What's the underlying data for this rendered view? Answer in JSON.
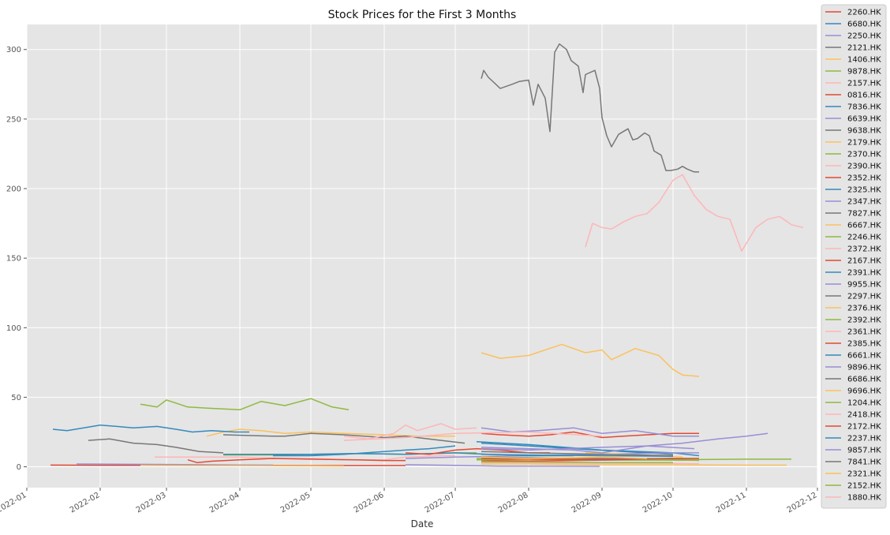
{
  "chart_data": {
    "type": "line",
    "title": "Stock Prices for the First 3 Months",
    "xlabel": "Date",
    "ylabel": "",
    "xlim": [
      "2022-01-01",
      "2022-12-01"
    ],
    "ylim": [
      -15,
      318
    ],
    "x_ticks": [
      "2022-01",
      "2022-02",
      "2022-03",
      "2022-04",
      "2022-05",
      "2022-06",
      "2022-07",
      "2022-08",
      "2022-09",
      "2022-10",
      "2022-11",
      "2022-12"
    ],
    "y_ticks": [
      0,
      50,
      100,
      150,
      200,
      250,
      300
    ],
    "grid": true,
    "legend_position": "right",
    "series": [
      {
        "name": "2260.HK",
        "color": "#E24A33",
        "x": [
          "2022-07-12",
          "2022-08-01",
          "2022-09-01",
          "2022-10-01",
          "2022-10-12"
        ],
        "y": [
          4.5,
          4.2,
          4.8,
          5.0,
          4.6
        ]
      },
      {
        "name": "6680.HK",
        "color": "#348ABD",
        "x": [
          "2022-07-12",
          "2022-08-01",
          "2022-08-20",
          "2022-09-10",
          "2022-10-01"
        ],
        "y": [
          17,
          15,
          13,
          11,
          9
        ]
      },
      {
        "name": "2250.HK",
        "color": "#988ED5",
        "x": [
          "2022-06-10",
          "2022-07-01",
          "2022-07-20",
          "2022-08-10",
          "2022-08-31"
        ],
        "y": [
          1.5,
          1.0,
          0.5,
          0.5,
          0.3
        ]
      },
      {
        "name": "2121.HK",
        "color": "#777777",
        "x": [
          "2022-07-12",
          "2022-07-13",
          "2022-07-15",
          "2022-07-20",
          "2022-07-25",
          "2022-07-28",
          "2022-08-01",
          "2022-08-03",
          "2022-08-05",
          "2022-08-08",
          "2022-08-10",
          "2022-08-12",
          "2022-08-14",
          "2022-08-17",
          "2022-08-19",
          "2022-08-22",
          "2022-08-24",
          "2022-08-25",
          "2022-08-29",
          "2022-08-31",
          "2022-09-01",
          "2022-09-03",
          "2022-09-05",
          "2022-09-08",
          "2022-09-10",
          "2022-09-12",
          "2022-09-14",
          "2022-09-16",
          "2022-09-19",
          "2022-09-21",
          "2022-09-23",
          "2022-09-26",
          "2022-09-28",
          "2022-09-30",
          "2022-10-03",
          "2022-10-05",
          "2022-10-07",
          "2022-10-10",
          "2022-10-12"
        ],
        "y": [
          279,
          285,
          280,
          272,
          275,
          277,
          278,
          260,
          275,
          265,
          241,
          298,
          304,
          300,
          292,
          288,
          269,
          282,
          285,
          272,
          251,
          238,
          230,
          239,
          241,
          243,
          235,
          236,
          240,
          238,
          227,
          224,
          213,
          213,
          214,
          216,
          214,
          212,
          212
        ]
      },
      {
        "name": "1406.HK",
        "color": "#FBC15E",
        "x": [
          "2022-07-12",
          "2022-07-20",
          "2022-08-01",
          "2022-08-15",
          "2022-08-25",
          "2022-09-01",
          "2022-09-05",
          "2022-09-15",
          "2022-09-25",
          "2022-10-01",
          "2022-10-05",
          "2022-10-12"
        ],
        "y": [
          82,
          78,
          80,
          88,
          82,
          84,
          77,
          85,
          80,
          70,
          66,
          65
        ]
      },
      {
        "name": "9878.HK",
        "color": "#8EBA42",
        "x": [
          "2022-07-10",
          "2022-08-01",
          "2022-09-01",
          "2022-10-01",
          "2022-10-12"
        ],
        "y": [
          6.0,
          5.5,
          5.0,
          4.8,
          4.6
        ]
      },
      {
        "name": "2157.HK",
        "color": "#FFB5B8",
        "x": [
          "2022-07-12",
          "2022-08-01",
          "2022-09-01",
          "2022-10-01",
          "2022-10-12"
        ],
        "y": [
          3.0,
          2.8,
          2.5,
          2.4,
          2.2
        ]
      },
      {
        "name": "0816.HK",
        "color": "#E24A33",
        "x": [
          "2022-01-11",
          "2022-02-01",
          "2022-03-01",
          "2022-04-01",
          "2022-05-01",
          "2022-06-01",
          "2022-06-10"
        ],
        "y": [
          1.2,
          1.1,
          1.0,
          1.0,
          0.9,
          0.9,
          0.9
        ]
      },
      {
        "name": "7836.HK",
        "color": "#348ABD",
        "x": [
          "2022-07-10",
          "2022-08-01",
          "2022-09-01",
          "2022-10-01",
          "2022-10-12"
        ],
        "y": [
          18,
          16,
          12,
          10,
          8
        ]
      },
      {
        "name": "6639.HK",
        "color": "#988ED5",
        "x": [
          "2022-06-10",
          "2022-07-01",
          "2022-08-01",
          "2022-09-01",
          "2022-10-01",
          "2022-10-12"
        ],
        "y": [
          6,
          7,
          8,
          9,
          10,
          10
        ]
      },
      {
        "name": "9638.HK",
        "color": "#777777",
        "x": [
          "2022-07-12",
          "2022-08-01",
          "2022-09-01",
          "2022-10-01",
          "2022-10-12"
        ],
        "y": [
          7,
          6.5,
          6,
          5.5,
          5
        ]
      },
      {
        "name": "2179.HK",
        "color": "#FBC15E",
        "x": [
          "2022-03-18",
          "2022-03-25",
          "2022-04-01",
          "2022-04-10",
          "2022-04-20",
          "2022-05-01",
          "2022-05-15",
          "2022-06-01",
          "2022-06-15",
          "2022-07-01"
        ],
        "y": [
          22,
          25,
          27,
          26,
          24,
          25,
          24,
          23,
          22,
          22
        ]
      },
      {
        "name": "2370.HK",
        "color": "#8EBA42",
        "x": [
          "2022-03-25",
          "2022-04-15",
          "2022-05-01",
          "2022-05-20",
          "2022-06-10",
          "2022-07-01",
          "2022-07-10"
        ],
        "y": [
          8.5,
          8.5,
          9.0,
          9.5,
          9.0,
          10,
          10
        ]
      },
      {
        "name": "2390.HK",
        "color": "#FFB5B8",
        "x": [
          "2022-02-24",
          "2022-03-15",
          "2022-04-01",
          "2022-04-20",
          "2022-05-01",
          "2022-05-15",
          "2022-06-01",
          "2022-06-10",
          "2022-06-25",
          "2022-07-01"
        ],
        "y": [
          7,
          7,
          7,
          6,
          6,
          5,
          5,
          7,
          8,
          8
        ]
      },
      {
        "name": "2352.HK",
        "color": "#E24A33",
        "x": [
          "2022-03-10",
          "2022-03-14",
          "2022-03-20",
          "2022-04-01",
          "2022-04-15",
          "2022-05-01",
          "2022-05-20",
          "2022-06-01",
          "2022-06-10"
        ],
        "y": [
          5,
          3,
          4,
          5,
          6,
          5.5,
          5,
          4.5,
          4.5
        ]
      },
      {
        "name": "2325.HK",
        "color": "#348ABD",
        "x": [
          "2022-03-25",
          "2022-04-15",
          "2022-05-01",
          "2022-05-20",
          "2022-06-10",
          "2022-07-01",
          "2022-07-15",
          "2022-08-01",
          "2022-08-20"
        ],
        "y": [
          9,
          9,
          9,
          9.5,
          9,
          10,
          9,
          8,
          8
        ]
      },
      {
        "name": "2347.HK",
        "color": "#988ED5",
        "x": [
          "2022-01-22",
          "2022-02-15",
          "2022-03-15",
          "2022-04-01",
          "2022-04-15"
        ],
        "y": [
          2,
          1.8,
          1.5,
          1.3,
          1.2
        ]
      },
      {
        "name": "7827.HK",
        "color": "#777777",
        "x": [
          "2022-03-25",
          "2022-04-15",
          "2022-04-20",
          "2022-05-01",
          "2022-05-15",
          "2022-06-01",
          "2022-06-10",
          "2022-06-25",
          "2022-07-05"
        ],
        "y": [
          23,
          22,
          22,
          24,
          23,
          21,
          22,
          19,
          17
        ]
      },
      {
        "name": "6667.HK",
        "color": "#FBC15E",
        "x": [
          "2022-08-25",
          "2022-09-10",
          "2022-09-25",
          "2022-10-05"
        ],
        "y": [
          10,
          9,
          8,
          7
        ]
      },
      {
        "name": "2246.HK",
        "color": "#8EBA42",
        "x": [
          "2022-07-10",
          "2022-08-01",
          "2022-08-15",
          "2022-09-01",
          "2022-09-15",
          "2022-10-01",
          "2022-10-12"
        ],
        "y": [
          5,
          6,
          6,
          5.5,
          5,
          5,
          5
        ]
      },
      {
        "name": "2372.HK",
        "color": "#FFB5B8",
        "x": [
          "2022-05-15",
          "2022-05-25",
          "2022-06-05",
          "2022-06-10",
          "2022-06-15",
          "2022-06-25",
          "2022-07-01",
          "2022-07-10"
        ],
        "y": [
          22,
          20,
          24,
          30,
          26,
          31,
          27,
          28
        ]
      },
      {
        "name": "2167.HK",
        "color": "#E24A33",
        "x": [
          "2022-07-12",
          "2022-07-20",
          "2022-08-01",
          "2022-08-10",
          "2022-08-20",
          "2022-09-01",
          "2022-09-10",
          "2022-09-20",
          "2022-10-01",
          "2022-10-12"
        ],
        "y": [
          24,
          23,
          22,
          23,
          25,
          21,
          22,
          23,
          24,
          24
        ]
      },
      {
        "name": "2391.HK",
        "color": "#348ABD",
        "x": [
          "2022-01-12",
          "2022-01-18",
          "2022-01-25",
          "2022-02-01",
          "2022-02-08",
          "2022-02-15",
          "2022-02-25",
          "2022-03-05",
          "2022-03-12",
          "2022-03-20",
          "2022-03-30",
          "2022-04-05"
        ],
        "y": [
          27,
          26,
          28,
          30,
          29,
          28,
          29,
          27,
          25,
          26,
          25,
          25
        ]
      },
      {
        "name": "9955.HK",
        "color": "#988ED5",
        "x": [
          "2022-07-12",
          "2022-07-25",
          "2022-08-05",
          "2022-08-20",
          "2022-09-01",
          "2022-09-15",
          "2022-10-01",
          "2022-10-12"
        ],
        "y": [
          28,
          25,
          26,
          28,
          24,
          26,
          22,
          22
        ]
      },
      {
        "name": "2297.HK",
        "color": "#777777",
        "x": [
          "2022-01-27",
          "2022-02-05",
          "2022-02-15",
          "2022-02-25",
          "2022-03-05",
          "2022-03-15",
          "2022-03-25"
        ],
        "y": [
          19,
          20,
          17,
          16,
          14,
          11,
          10
        ]
      },
      {
        "name": "2376.HK",
        "color": "#FBC15E",
        "x": [
          "2022-02-18",
          "2022-03-15",
          "2022-04-01",
          "2022-05-01",
          "2022-05-15"
        ],
        "y": [
          1,
          0.8,
          0.8,
          0.6,
          0.5
        ]
      },
      {
        "name": "2392.HK",
        "color": "#8EBA42",
        "x": [
          "2022-07-10",
          "2022-08-01",
          "2022-09-01",
          "2022-10-01",
          "2022-11-01",
          "2022-11-20"
        ],
        "y": [
          5,
          5.5,
          5,
          5,
          5.5,
          5.5
        ]
      },
      {
        "name": "2361.HK",
        "color": "#FFB5B8",
        "x": [
          "2022-07-12",
          "2022-08-01",
          "2022-09-01",
          "2022-10-01"
        ],
        "y": [
          3,
          3,
          3,
          3
        ]
      },
      {
        "name": "2385.HK",
        "color": "#E24A33",
        "x": [
          "2022-06-10",
          "2022-06-20",
          "2022-07-01",
          "2022-07-10",
          "2022-07-20",
          "2022-08-01",
          "2022-08-10"
        ],
        "y": [
          10,
          9,
          12,
          13,
          12,
          10,
          10
        ]
      },
      {
        "name": "6661.HK",
        "color": "#348ABD",
        "x": [
          "2022-04-15",
          "2022-05-01",
          "2022-05-15",
          "2022-06-01",
          "2022-06-10",
          "2022-06-20",
          "2022-07-01"
        ],
        "y": [
          8,
          8,
          9,
          11,
          12,
          13,
          15
        ]
      },
      {
        "name": "9896.HK",
        "color": "#988ED5",
        "x": [
          "2022-07-12",
          "2022-08-01",
          "2022-08-20",
          "2022-09-01",
          "2022-09-20",
          "2022-10-05",
          "2022-10-20",
          "2022-11-01",
          "2022-11-10"
        ],
        "y": [
          14,
          13,
          12,
          10,
          15,
          17,
          20,
          22,
          24
        ]
      },
      {
        "name": "6686.HK",
        "color": "#777777",
        "x": [
          "2022-07-12",
          "2022-08-01",
          "2022-09-01",
          "2022-10-01"
        ],
        "y": [
          7,
          6,
          5,
          6
        ]
      },
      {
        "name": "9696.HK",
        "color": "#FBC15E",
        "x": [
          "2022-07-12",
          "2022-08-01",
          "2022-09-01",
          "2022-10-01",
          "2022-11-01",
          "2022-11-18"
        ],
        "y": [
          2,
          2,
          1.5,
          1.5,
          1.2,
          1.2
        ]
      },
      {
        "name": "1204.HK",
        "color": "#8EBA42",
        "x": [
          "2022-02-18",
          "2022-02-25",
          "2022-03-01",
          "2022-03-10",
          "2022-03-20",
          "2022-04-01",
          "2022-04-10",
          "2022-04-20",
          "2022-05-01",
          "2022-05-10",
          "2022-05-17"
        ],
        "y": [
          45,
          43,
          48,
          43,
          42,
          41,
          47,
          44,
          49,
          43,
          41
        ]
      },
      {
        "name": "2418.HK",
        "color": "#FFB5B8",
        "x": [
          "2022-08-25",
          "2022-08-28",
          "2022-09-01",
          "2022-09-05",
          "2022-09-10",
          "2022-09-15",
          "2022-09-20",
          "2022-09-25",
          "2022-10-01",
          "2022-10-05",
          "2022-10-10",
          "2022-10-15",
          "2022-10-20",
          "2022-10-25",
          "2022-10-30",
          "2022-11-05",
          "2022-11-10",
          "2022-11-15",
          "2022-11-20",
          "2022-11-25"
        ],
        "y": [
          158,
          175,
          172,
          171,
          176,
          180,
          182,
          190,
          206,
          210,
          195,
          185,
          180,
          178,
          155,
          172,
          178,
          180,
          174,
          172
        ]
      },
      {
        "name": "2172.HK",
        "color": "#E24A33",
        "x": [
          "2022-07-12",
          "2022-08-01",
          "2022-09-01",
          "2022-10-01",
          "2022-10-12"
        ],
        "y": [
          6,
          5.5,
          5.5,
          6,
          6
        ]
      },
      {
        "name": "2237.HK",
        "color": "#348ABD",
        "x": [
          "2022-07-12",
          "2022-08-01",
          "2022-09-01",
          "2022-10-01"
        ],
        "y": [
          9,
          8.5,
          8,
          7.5
        ]
      },
      {
        "name": "9857.HK",
        "color": "#988ED5",
        "x": [
          "2022-07-12",
          "2022-08-01",
          "2022-09-01",
          "2022-09-20",
          "2022-10-10"
        ],
        "y": [
          13,
          12,
          14,
          15,
          13
        ]
      },
      {
        "name": "7841.HK",
        "color": "#777777",
        "x": [
          "2022-07-12",
          "2022-08-01",
          "2022-09-01",
          "2022-10-01"
        ],
        "y": [
          11,
          10,
          9,
          8
        ]
      },
      {
        "name": "2321.HK",
        "color": "#FBC15E",
        "x": [
          "2022-07-12",
          "2022-08-01",
          "2022-09-01",
          "2022-09-20"
        ],
        "y": [
          7,
          6,
          7,
          6
        ]
      },
      {
        "name": "2152.HK",
        "color": "#8EBA42",
        "x": [
          "2022-07-12",
          "2022-08-01",
          "2022-09-01",
          "2022-10-01"
        ],
        "y": [
          3.5,
          3.5,
          3,
          3
        ]
      },
      {
        "name": "1880.HK",
        "color": "#FFB5B8",
        "x": [
          "2022-05-15",
          "2022-06-10",
          "2022-07-01",
          "2022-08-01",
          "2022-09-01"
        ],
        "y": [
          19,
          21,
          24,
          25,
          22
        ]
      }
    ]
  }
}
